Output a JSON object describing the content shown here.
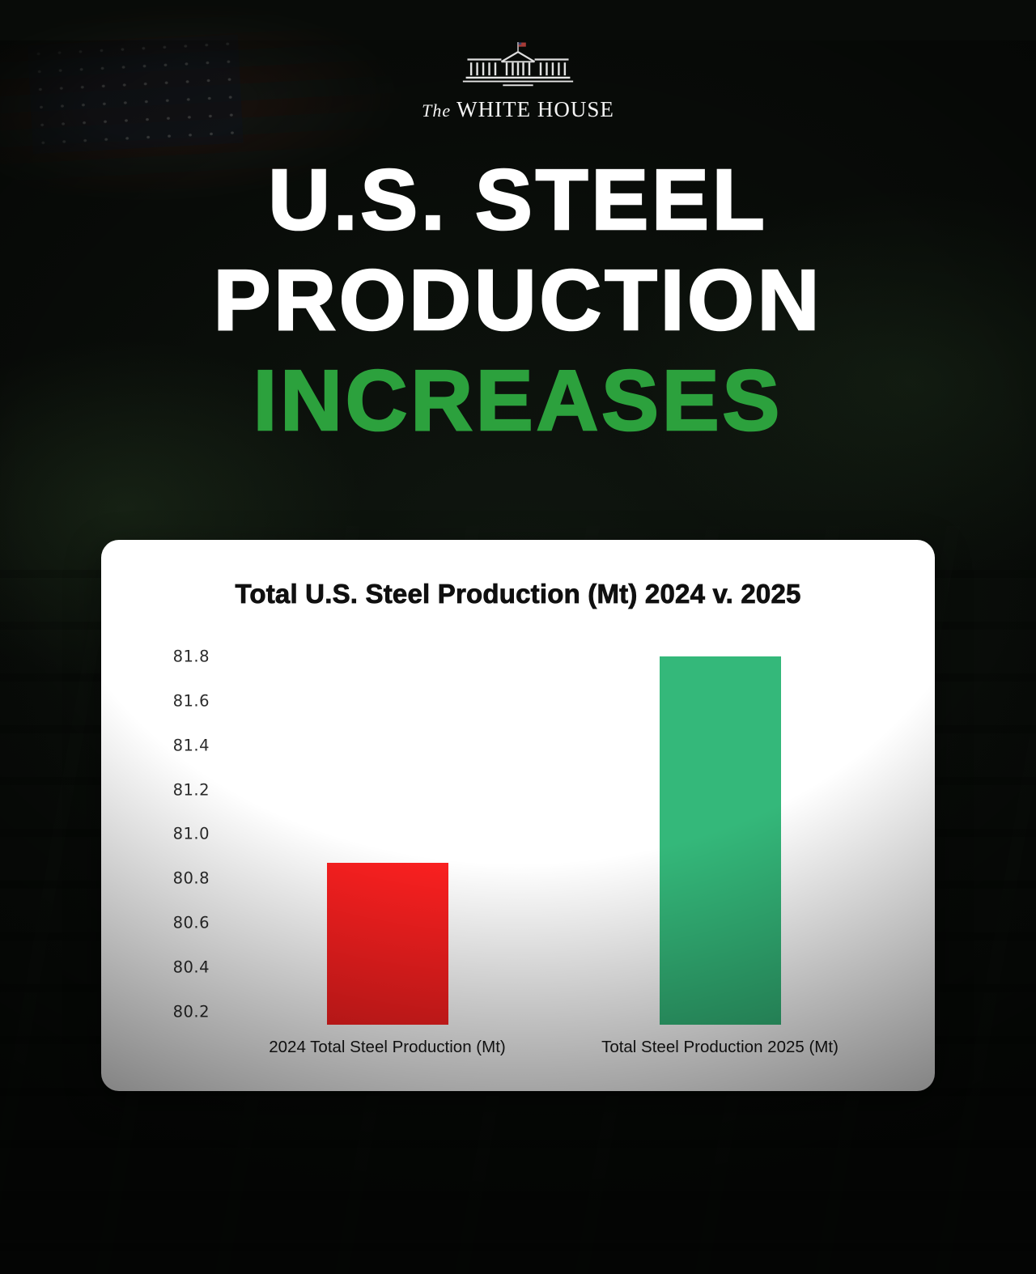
{
  "brand": {
    "prefix": "The",
    "name": "WHITE HOUSE"
  },
  "headline": {
    "line1": "U.S. STEEL",
    "line2": "PRODUCTION",
    "line3": "INCREASES"
  },
  "colors": {
    "accent_green": "#2ca13d",
    "bar_red": "#fb2020",
    "bar_green": "#34b87a",
    "card_bg": "#ffffff",
    "headline_white": "#ffffff"
  },
  "chart_data": {
    "type": "bar",
    "title": "Total U.S. Steel Production (Mt) 2024 v. 2025",
    "categories": [
      "2024 Total Steel Production (Mt)",
      "Total Steel Production 2025 (Mt)"
    ],
    "values": [
      80.87,
      81.8
    ],
    "colors": [
      "#fb2020",
      "#34b87a"
    ],
    "yticks": [
      81.8,
      81.6,
      81.4,
      81.2,
      81.0,
      80.8,
      80.6,
      80.4,
      80.2
    ],
    "ylim": [
      80.14,
      81.8
    ],
    "xlabel": "",
    "ylabel": "",
    "grid": false,
    "legend": "none"
  }
}
